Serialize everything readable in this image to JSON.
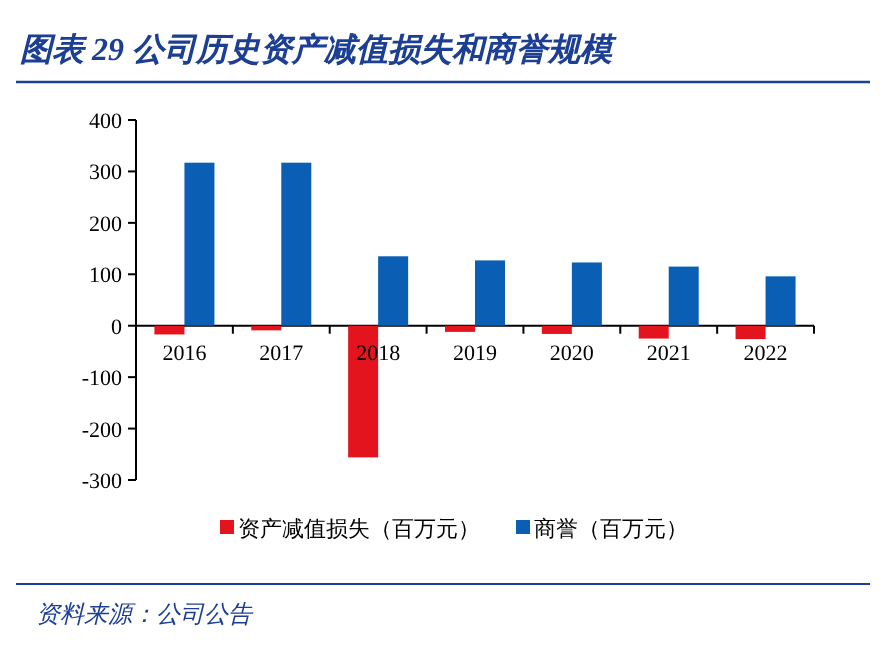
{
  "chart_data": {
    "type": "bar",
    "title": "图表 29 公司历史资产减值损失和商誉规模",
    "categories": [
      "2016",
      "2017",
      "2018",
      "2019",
      "2020",
      "2021",
      "2022"
    ],
    "series": [
      {
        "name": "资产减值损失（百万元）",
        "color": "#e3141d",
        "values": [
          -17,
          -9,
          -256,
          -12,
          -16,
          -25,
          -26
        ]
      },
      {
        "name": "商誉（百万元）",
        "color": "#0a5fb4",
        "values": [
          317,
          317,
          135,
          127,
          123,
          115,
          96
        ]
      }
    ],
    "ylim": [
      -300,
      400
    ],
    "yticks": [
      -300,
      -200,
      -100,
      0,
      100,
      200,
      300,
      400
    ],
    "legend": "bottom",
    "grid": false,
    "annotations": [
      "资料来源：公司公告"
    ]
  }
}
